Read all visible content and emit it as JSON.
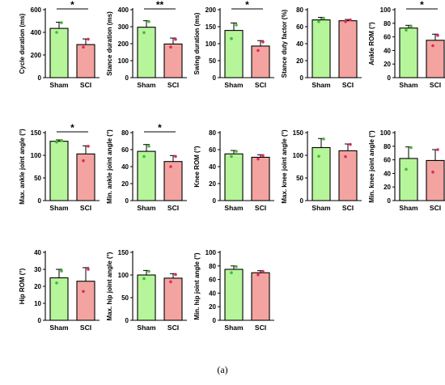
{
  "figure": {
    "caption": "(a)"
  },
  "colors": {
    "sham": "#b6f59a",
    "sci": "#f3a4a0",
    "sham_dot": "#46b83a",
    "sci_dot": "#e02a5a",
    "axis": "#000000"
  },
  "chart_data": [
    {
      "type": "bar",
      "ylabel": "Cycle duration (ms)",
      "categories": [
        "Sham",
        "SCI"
      ],
      "ylim": [
        0,
        600
      ],
      "ticks": [
        0,
        200,
        400,
        600
      ],
      "values": [
        435,
        292
      ],
      "errors": [
        55,
        50
      ],
      "points": [
        [
          400,
          485
        ],
        [
          270,
          340
        ]
      ],
      "significance": "*"
    },
    {
      "type": "bar",
      "ylabel": "Stance duration (ms)",
      "categories": [
        "Sham",
        "SCI"
      ],
      "ylim": [
        0,
        400
      ],
      "ticks": [
        0,
        100,
        200,
        300,
        400
      ],
      "values": [
        297,
        198
      ],
      "errors": [
        38,
        35
      ],
      "points": [
        [
          265,
          330
        ],
        [
          180,
          225
        ]
      ],
      "significance": "**"
    },
    {
      "type": "bar",
      "ylabel": "Swing duration (ms)",
      "categories": [
        "Sham",
        "SCI"
      ],
      "ylim": [
        0,
        200
      ],
      "ticks": [
        0,
        50,
        100,
        150,
        200
      ],
      "values": [
        139,
        93
      ],
      "errors": [
        22,
        16
      ],
      "points": [
        [
          115,
          155
        ],
        [
          80,
          105
        ]
      ],
      "significance": "*"
    },
    {
      "type": "bar",
      "ylabel": "Stance duty factor (%)",
      "categories": [
        "Sham",
        "SCI"
      ],
      "ylim": [
        0,
        80
      ],
      "ticks": [
        0,
        20,
        40,
        60,
        80
      ],
      "values": [
        68,
        67
      ],
      "errors": [
        3,
        1.5
      ],
      "points": [
        [
          66,
          70
        ],
        [
          66,
          68
        ]
      ],
      "significance": ""
    },
    {
      "type": "bar",
      "ylabel": "Ankle ROM (°)",
      "categories": [
        "Sham",
        "SCI"
      ],
      "ylim": [
        0,
        100
      ],
      "ticks": [
        0,
        20,
        40,
        60,
        80,
        100
      ],
      "values": [
        73,
        55
      ],
      "errors": [
        4,
        9
      ],
      "points": [
        [
          70,
          76
        ],
        [
          47,
          62
        ]
      ],
      "significance": "*"
    },
    {
      "type": "bar",
      "ylabel": "Max. ankle joint angle (°)",
      "categories": [
        "Sham",
        "SCI"
      ],
      "ylim": [
        0,
        150
      ],
      "ticks": [
        0,
        50,
        100,
        150
      ],
      "values": [
        131,
        103
      ],
      "errors": [
        3,
        18
      ],
      "points": [
        [
          129,
          133
        ],
        [
          88,
          120
        ]
      ],
      "significance": "*"
    },
    {
      "type": "bar",
      "ylabel": "Min. ankle joint angle (°)",
      "categories": [
        "Sham",
        "SCI"
      ],
      "ylim": [
        0,
        80
      ],
      "ticks": [
        0,
        20,
        40,
        60,
        80
      ],
      "values": [
        58,
        46
      ],
      "errors": [
        8,
        7
      ],
      "points": [
        [
          52,
          64
        ],
        [
          40,
          52
        ]
      ],
      "significance": "*"
    },
    {
      "type": "bar",
      "ylabel": "Knee ROM (°)",
      "categories": [
        "Sham",
        "SCI"
      ],
      "ylim": [
        0,
        80
      ],
      "ticks": [
        0,
        20,
        40,
        60,
        80
      ],
      "values": [
        55,
        51
      ],
      "errors": [
        4,
        3
      ],
      "points": [
        [
          52,
          58
        ],
        [
          49,
          53
        ]
      ],
      "significance": ""
    },
    {
      "type": "bar",
      "ylabel": "Max. knee joint angle (°)",
      "categories": [
        "Sham",
        "SCI"
      ],
      "ylim": [
        0,
        150
      ],
      "ticks": [
        0,
        50,
        100,
        150
      ],
      "values": [
        117,
        110
      ],
      "errors": [
        20,
        15
      ],
      "points": [
        [
          98,
          136
        ],
        [
          97,
          124
        ]
      ],
      "significance": ""
    },
    {
      "type": "bar",
      "ylabel": "Min. knee joint angle (°)",
      "categories": [
        "Sham",
        "SCI"
      ],
      "ylim": [
        0,
        100
      ],
      "ticks": [
        0,
        20,
        40,
        60,
        80,
        100
      ],
      "values": [
        62,
        59
      ],
      "errors": [
        17,
        16
      ],
      "points": [
        [
          46,
          78
        ],
        [
          42,
          75
        ]
      ],
      "significance": ""
    },
    {
      "type": "bar",
      "ylabel": "Hip ROM (°)",
      "categories": [
        "Sham",
        "SCI"
      ],
      "ylim": [
        0,
        40
      ],
      "ticks": [
        0,
        10,
        20,
        30,
        40
      ],
      "values": [
        25,
        23
      ],
      "errors": [
        5,
        8
      ],
      "points": [
        [
          22,
          29
        ],
        [
          17,
          30
        ]
      ],
      "significance": ""
    },
    {
      "type": "bar",
      "ylabel": "Max. hip joint angle (°)",
      "categories": [
        "Sham",
        "SCI"
      ],
      "ylim": [
        0,
        150
      ],
      "ticks": [
        0,
        50,
        100,
        150
      ],
      "values": [
        100,
        93
      ],
      "errors": [
        10,
        10
      ],
      "points": [
        [
          92,
          108
        ],
        [
          85,
          101
        ]
      ],
      "significance": ""
    },
    {
      "type": "bar",
      "ylabel": "Min. hip joint angle (°)",
      "categories": [
        "Sham",
        "SCI"
      ],
      "ylim": [
        0,
        100
      ],
      "ticks": [
        0,
        20,
        40,
        60,
        80,
        100
      ],
      "values": [
        75,
        70
      ],
      "errors": [
        5,
        3
      ],
      "points": [
        [
          70,
          79
        ],
        [
          67,
          72
        ]
      ],
      "significance": ""
    }
  ]
}
